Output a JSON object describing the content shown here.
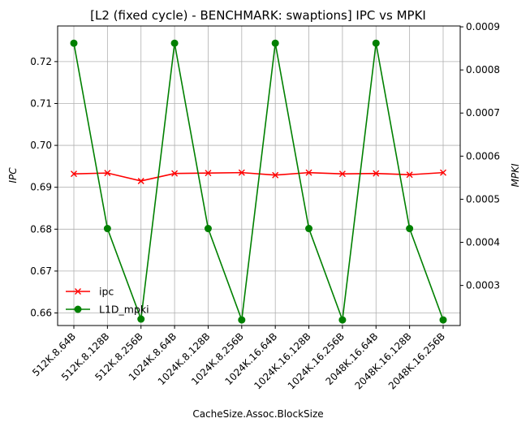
{
  "chart_data": {
    "type": "line",
    "title": "[L2 (fixed cycle) - BENCHMARK: swaptions]  IPC vs MPKI",
    "xlabel": "CacheSize.Assoc.BlockSize",
    "ylabel_left": "IPC",
    "ylabel_right": "MPKI",
    "categories": [
      "512K.8.64B",
      "512K.8.128B",
      "512K.8.256B",
      "1024K.8.64B",
      "1024K.8.128B",
      "1024K.8.256B",
      "1024K.16.64B",
      "1024K.16.128B",
      "1024K.16.256B",
      "2048K.16.64B",
      "2048K.16.128B",
      "2048K.16.256B"
    ],
    "ylim_left": [
      0.657,
      0.7285
    ],
    "ylim_right": [
      0.000207,
      0.000902
    ],
    "yticks_left": [
      "0.66",
      "0.67",
      "0.68",
      "0.69",
      "0.70",
      "0.71",
      "0.72"
    ],
    "yticks_left_values": [
      0.66,
      0.67,
      0.68,
      0.69,
      0.7,
      0.71,
      0.72
    ],
    "yticks_right": [
      "0.0003",
      "0.0004",
      "0.0005",
      "0.0006",
      "0.0007",
      "0.0008",
      "0.0009"
    ],
    "yticks_right_values": [
      0.0003,
      0.0004,
      0.0005,
      0.0006,
      0.0007,
      0.0008,
      0.0009
    ],
    "grid": true,
    "legend_position": "lower-left",
    "series": [
      {
        "name": "ipc",
        "axis": "left",
        "color": "#ff0000",
        "marker": "x",
        "values": [
          0.6932,
          0.6934,
          0.6915,
          0.6933,
          0.6934,
          0.6935,
          0.6929,
          0.6935,
          0.6932,
          0.6933,
          0.693,
          0.6935
        ]
      },
      {
        "name": "L1D_mpki",
        "axis": "right",
        "color": "#008000",
        "marker": "o",
        "values": [
          0.000862,
          0.000432,
          0.000222,
          0.000862,
          0.000432,
          0.00022,
          0.000862,
          0.000432,
          0.00022,
          0.000862,
          0.000432,
          0.00022
        ]
      }
    ]
  }
}
